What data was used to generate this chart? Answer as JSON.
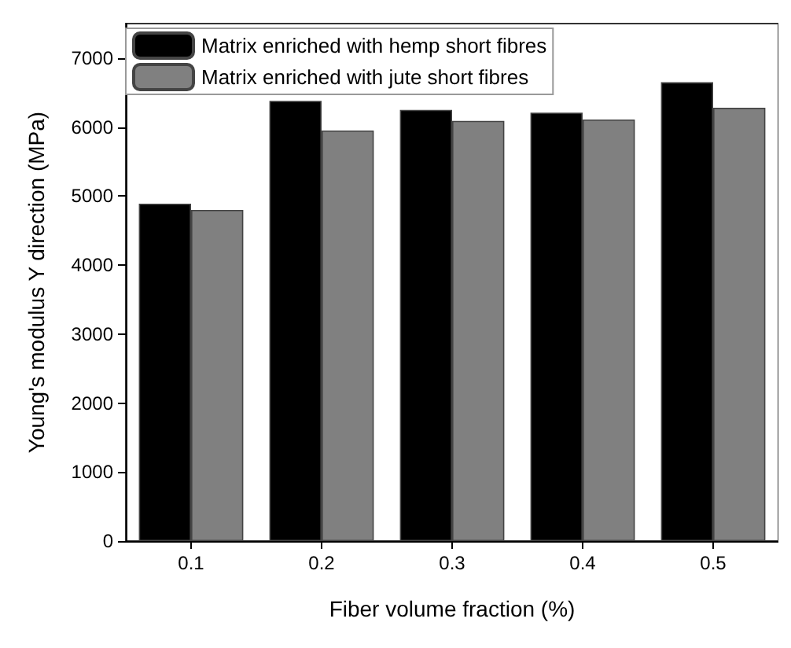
{
  "chart_data": {
    "type": "bar",
    "categories": [
      "0.1",
      "0.2",
      "0.3",
      "0.4",
      "0.5"
    ],
    "series": [
      {
        "name": "Matrix enriched with hemp short fibres",
        "color": "#000000",
        "values": [
          4890,
          6380,
          6250,
          6210,
          6650
        ]
      },
      {
        "name": "Matrix enriched with jute short fibres",
        "color": "#808080",
        "values": [
          4800,
          5950,
          6090,
          6110,
          6280
        ]
      }
    ],
    "xlabel": "Fiber volume fraction (%)",
    "ylabel": "Young's modulus Y direction (MPa)",
    "ylim": [
      0,
      7500
    ],
    "yticks": [
      0,
      1000,
      2000,
      3000,
      4000,
      5000,
      6000,
      7000
    ],
    "grid": false,
    "legend": "top left"
  }
}
